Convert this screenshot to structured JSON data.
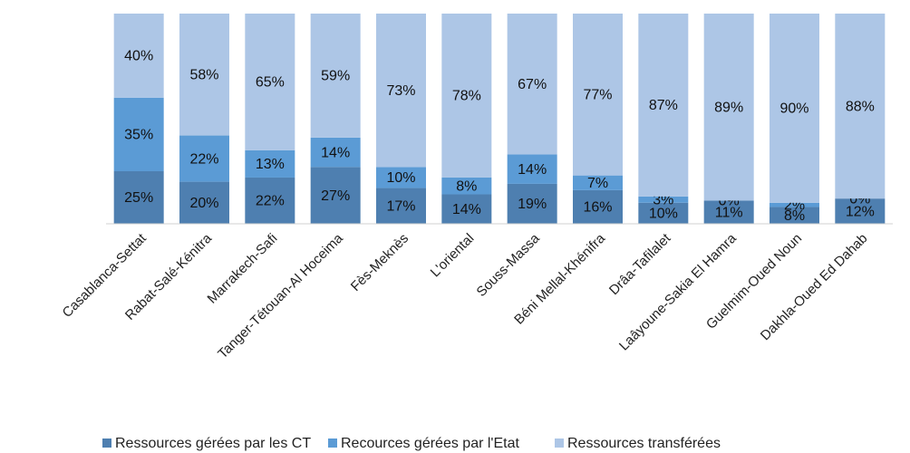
{
  "chart_data": {
    "type": "stacked_bar",
    "categories": [
      "Casablanca-Settat",
      "Rabat-Salé-Kénitra",
      "Marrakech-Safi",
      "Tanger-Tétouan-Al Hoceima",
      "Fès-Meknès",
      "L'oriental",
      "Souss-Massa",
      "Béni Mellal-Khénifra",
      "Drâa-Tafilalet",
      "Laâyoune-Sakia El Hamra",
      "Guelmim-Oued Noun",
      "Dakhla-Oued Ed Dahab"
    ],
    "series": [
      {
        "name": "Ressources gérées par les CT",
        "color": "#4e7fb0",
        "values": [
          25,
          20,
          22,
          27,
          17,
          14,
          19,
          16,
          10,
          11,
          8,
          12
        ],
        "value_labels": [
          "25%",
          "20%",
          "22%",
          "27%",
          "17%",
          "14%",
          "19%",
          "16%",
          "10%",
          "11%",
          "8%",
          "12%"
        ]
      },
      {
        "name": "Recources gérées par l'Etat",
        "color": "#5b9bd5",
        "values": [
          35,
          22,
          13,
          14,
          10,
          8,
          14,
          7,
          3,
          0,
          2,
          0
        ],
        "value_labels": [
          "35%",
          "22%",
          "13%",
          "14%",
          "10%",
          "8%",
          "14%",
          "7%",
          "3%",
          "0%",
          "2%",
          "0%"
        ]
      },
      {
        "name": "Ressources transférées",
        "color": "#adc6e6",
        "values": [
          40,
          58,
          65,
          59,
          73,
          78,
          67,
          77,
          87,
          89,
          90,
          88
        ],
        "value_labels": [
          "40%",
          "58%",
          "65%",
          "59%",
          "73%",
          "78%",
          "67%",
          "77%",
          "87%",
          "89%",
          "90%",
          "88%"
        ]
      }
    ],
    "ylim": [
      0,
      100
    ],
    "legend": "bottom"
  }
}
